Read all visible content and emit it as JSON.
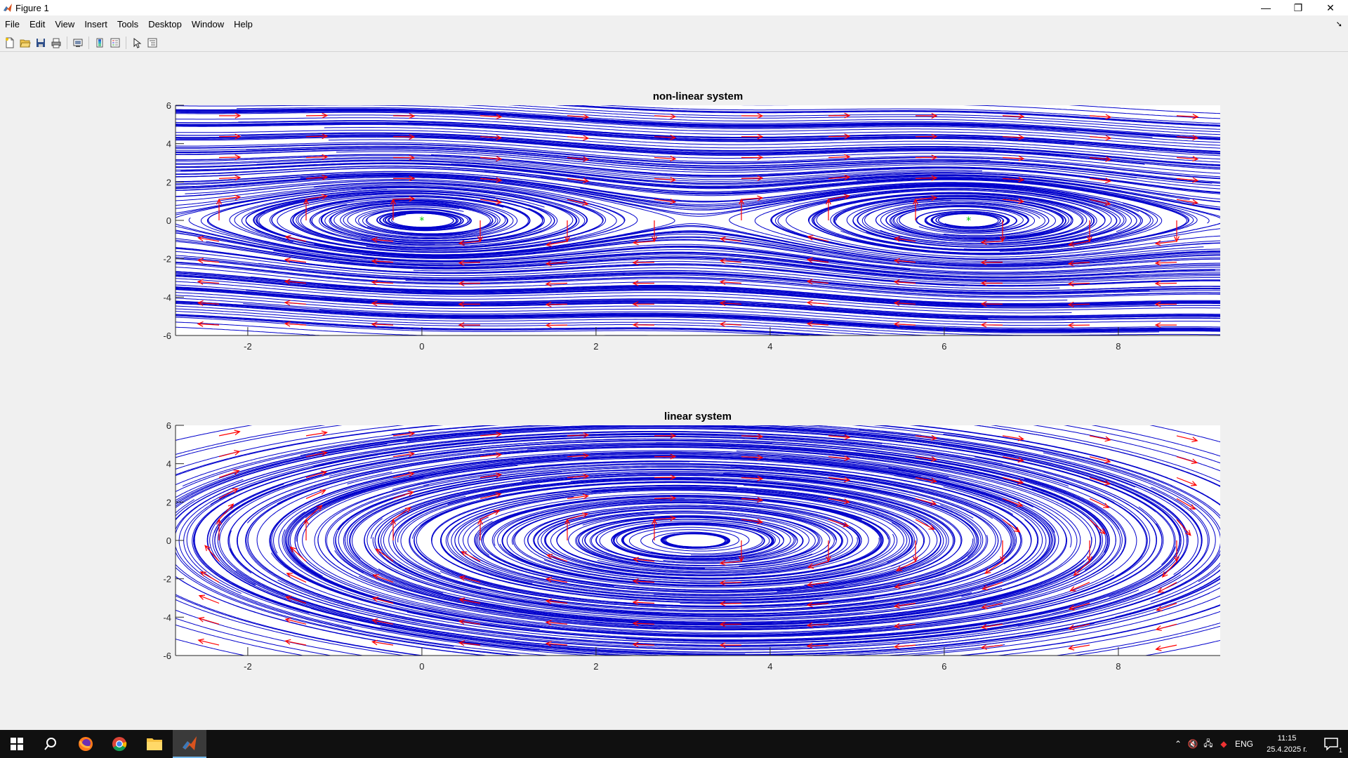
{
  "window": {
    "title": "Figure 1",
    "controls": {
      "minimize": "—",
      "restore": "❐",
      "close": "✕"
    }
  },
  "menubar": {
    "items": [
      "File",
      "Edit",
      "View",
      "Insert",
      "Tools",
      "Desktop",
      "Window",
      "Help"
    ]
  },
  "toolbar": {
    "buttons": [
      "new-figure",
      "open-file",
      "save",
      "print",
      "print-preview",
      "colorbar",
      "legend",
      "edit-plot",
      "property-inspector"
    ]
  },
  "colors": {
    "streamline": "#0000cc",
    "arrow": "#ff0000",
    "equilibrium": "#00cc00"
  },
  "chart_data": [
    {
      "type": "streamplot",
      "title": "non-linear system",
      "xlabel": "",
      "ylabel": "",
      "xlim": [
        -2.83,
        9.17
      ],
      "ylim": [
        -6,
        6
      ],
      "xticks": [
        -2,
        0,
        2,
        4,
        6,
        8
      ],
      "yticks": [
        -6,
        -4,
        -2,
        0,
        2,
        4,
        6
      ],
      "grid": false,
      "equilibria": [
        {
          "x": 0,
          "y": 0
        },
        {
          "x": 6.28,
          "y": 0
        }
      ],
      "center": {
        "x": 3.14,
        "y": 0
      },
      "stream_color": "blue",
      "quiver_color": "red"
    },
    {
      "type": "streamplot",
      "title": "linear system",
      "xlabel": "",
      "ylabel": "",
      "xlim": [
        -2.83,
        9.17
      ],
      "ylim": [
        -6,
        6
      ],
      "xticks": [
        -2,
        0,
        2,
        4,
        6,
        8
      ],
      "yticks": [
        -6,
        -4,
        -2,
        0,
        2,
        4,
        6
      ],
      "grid": false,
      "center": {
        "x": 3.14,
        "y": 0
      },
      "stream_color": "blue",
      "quiver_color": "red"
    }
  ],
  "taskbar": {
    "apps": [
      "windows-start",
      "search",
      "firefox",
      "chrome",
      "file-explorer",
      "matlab"
    ],
    "language": "ENG",
    "time": "11:15",
    "date": "25.4.2025 г.",
    "notification_count": "1"
  }
}
